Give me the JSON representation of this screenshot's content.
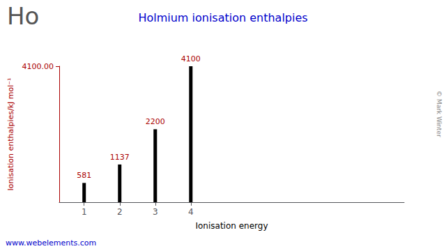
{
  "chart_data": {
    "type": "bar",
    "title": "Holmium ionisation enthalpies",
    "xlabel": "Ionisation energy",
    "ylabel": "Ionisation enthalpies/kJ mol⁻¹",
    "x": [
      1,
      2,
      3,
      4
    ],
    "values": [
      581,
      1137,
      2200,
      4100
    ],
    "xlim": [
      0.3,
      10
    ],
    "xticks": [
      1,
      2,
      3,
      4
    ],
    "ylim": [
      0,
      4100
    ],
    "yticks": [
      {
        "value": 4100,
        "label": "4100.00"
      }
    ],
    "data_labels": true,
    "color": "#000000",
    "grid": false,
    "annotations": [
      "Ho",
      "© Mark Winter",
      "www.webelements.com"
    ]
  }
}
